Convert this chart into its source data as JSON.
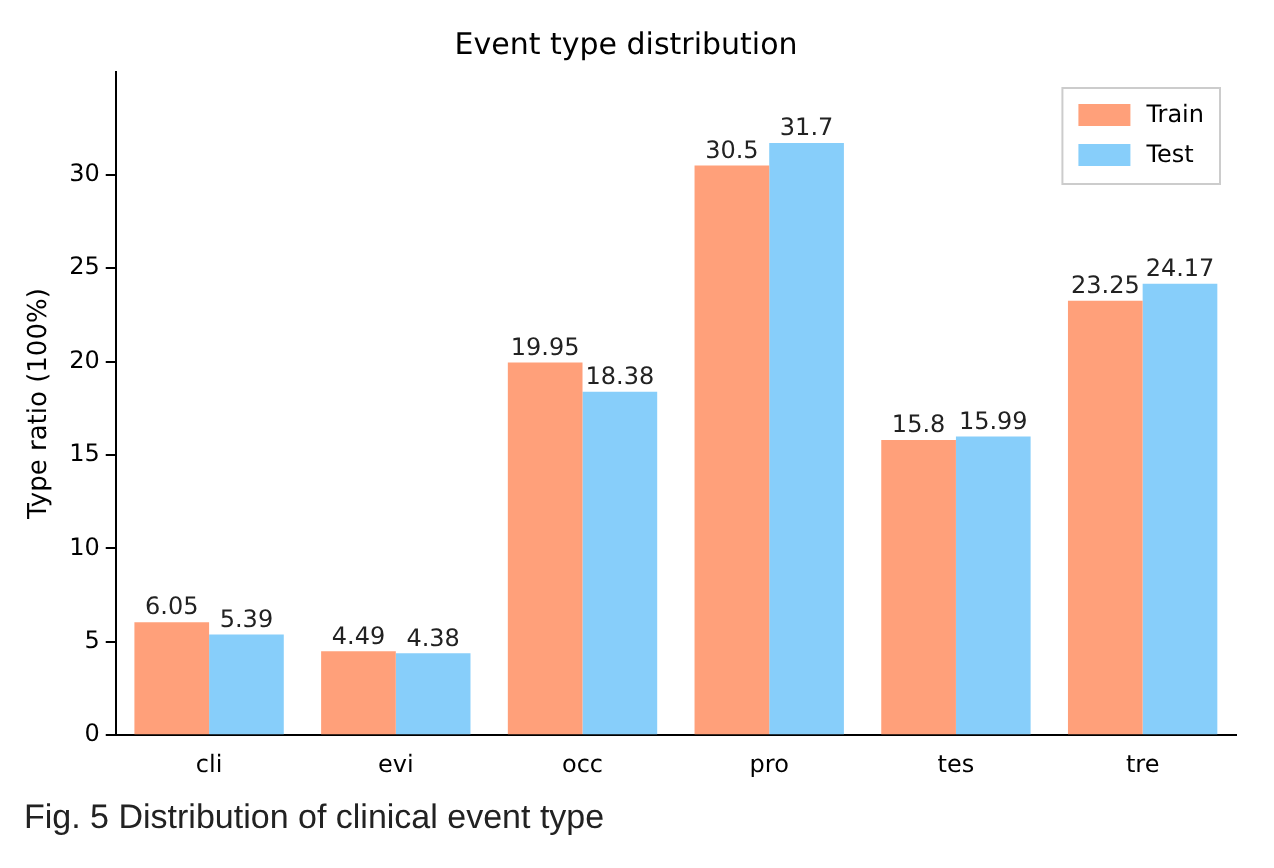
{
  "chart_data": {
    "type": "bar",
    "title": "Event type distribution",
    "ylabel": "Type ratio (100%)",
    "categories": [
      "cli",
      "evi",
      "occ",
      "pro",
      "tes",
      "tre"
    ],
    "series": [
      {
        "name": "Train",
        "color": "#ffa07a",
        "values": [
          6.05,
          4.49,
          19.95,
          30.5,
          15.8,
          23.25
        ]
      },
      {
        "name": "Test",
        "color": "#87cefa",
        "values": [
          5.39,
          4.38,
          18.38,
          31.7,
          15.99,
          24.17
        ]
      }
    ],
    "ylim": [
      0,
      35.5
    ],
    "yticks": [
      0,
      5,
      10,
      15,
      20,
      25,
      30
    ],
    "data_labels": true,
    "legend": "top right",
    "grid": false,
    "annotations": [
      "Fig. 5 Distribution of clinical event type"
    ]
  }
}
